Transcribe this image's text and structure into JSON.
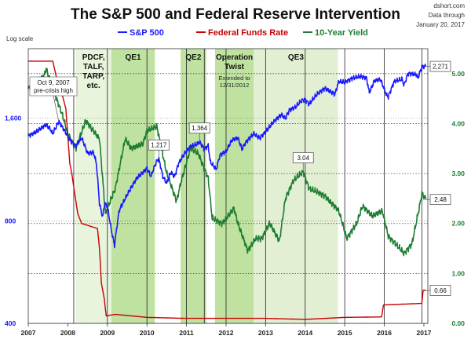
{
  "header": {
    "title": "The S&P 500 and Federal Reserve Intervention",
    "source": "dshort.com",
    "data_through_line1": "Data through",
    "data_through_line2": "January 20, 2017",
    "log_scale_label": "Log scale"
  },
  "chart_data": {
    "type": "line",
    "title": "The S&P 500 and Federal Reserve Intervention",
    "x_range": [
      2007,
      2017.1
    ],
    "x_ticks": [
      "2007",
      "2008",
      "2009",
      "2010",
      "2011",
      "2012",
      "2013",
      "2014",
      "2015",
      "2016",
      "2017"
    ],
    "left_axis": {
      "scale": "log",
      "range": [
        400,
        2560
      ],
      "ticks": [
        "400",
        "800",
        "1,600"
      ]
    },
    "right_axis": {
      "scale": "linear",
      "range": [
        0,
        5.5
      ],
      "ticks": [
        "0.00",
        "1.00",
        "2.00",
        "3.00",
        "4.00",
        "5.00"
      ]
    },
    "grid": true,
    "legend_position": "top",
    "series": [
      {
        "name": "S&P 500",
        "axis": "left",
        "color": "#1a1aff",
        "points": [
          [
            2007.0,
            1420
          ],
          [
            2007.2,
            1460
          ],
          [
            2007.45,
            1530
          ],
          [
            2007.55,
            1490
          ],
          [
            2007.62,
            1440
          ],
          [
            2007.77,
            1565
          ],
          [
            2007.92,
            1470
          ],
          [
            2008.05,
            1380
          ],
          [
            2008.2,
            1330
          ],
          [
            2008.35,
            1400
          ],
          [
            2008.5,
            1260
          ],
          [
            2008.65,
            1270
          ],
          [
            2008.72,
            1180
          ],
          [
            2008.8,
            900
          ],
          [
            2008.88,
            820
          ],
          [
            2008.93,
            900
          ],
          [
            2009.0,
            880
          ],
          [
            2009.1,
            750
          ],
          [
            2009.18,
            676
          ],
          [
            2009.3,
            860
          ],
          [
            2009.45,
            930
          ],
          [
            2009.6,
            1000
          ],
          [
            2009.75,
            1070
          ],
          [
            2009.9,
            1110
          ],
          [
            2010.0,
            1140
          ],
          [
            2010.1,
            1080
          ],
          [
            2010.25,
            1200
          ],
          [
            2010.3,
            1217
          ],
          [
            2010.4,
            1080
          ],
          [
            2010.5,
            1030
          ],
          [
            2010.6,
            1110
          ],
          [
            2010.7,
            1080
          ],
          [
            2010.8,
            1180
          ],
          [
            2010.95,
            1260
          ],
          [
            2011.1,
            1320
          ],
          [
            2011.25,
            1340
          ],
          [
            2011.33,
            1364
          ],
          [
            2011.45,
            1300
          ],
          [
            2011.55,
            1330
          ],
          [
            2011.6,
            1190
          ],
          [
            2011.75,
            1130
          ],
          [
            2011.85,
            1250
          ],
          [
            2012.0,
            1280
          ],
          [
            2012.15,
            1380
          ],
          [
            2012.3,
            1400
          ],
          [
            2012.4,
            1300
          ],
          [
            2012.5,
            1360
          ],
          [
            2012.7,
            1440
          ],
          [
            2012.85,
            1400
          ],
          [
            2013.0,
            1460
          ],
          [
            2013.2,
            1560
          ],
          [
            2013.4,
            1640
          ],
          [
            2013.5,
            1600
          ],
          [
            2013.6,
            1690
          ],
          [
            2013.75,
            1720
          ],
          [
            2013.9,
            1800
          ],
          [
            2014.0,
            1820
          ],
          [
            2014.1,
            1760
          ],
          [
            2014.3,
            1880
          ],
          [
            2014.5,
            1960
          ],
          [
            2014.6,
            1930
          ],
          [
            2014.75,
            1880
          ],
          [
            2014.85,
            2050
          ],
          [
            2015.0,
            2040
          ],
          [
            2015.2,
            2100
          ],
          [
            2015.4,
            2120
          ],
          [
            2015.55,
            2100
          ],
          [
            2015.62,
            1900
          ],
          [
            2015.75,
            2060
          ],
          [
            2015.9,
            2080
          ],
          [
            2016.05,
            1880
          ],
          [
            2016.1,
            1850
          ],
          [
            2016.25,
            2050
          ],
          [
            2016.45,
            2080
          ],
          [
            2016.5,
            2000
          ],
          [
            2016.6,
            2170
          ],
          [
            2016.8,
            2150
          ],
          [
            2016.85,
            2100
          ],
          [
            2016.95,
            2260
          ],
          [
            2017.05,
            2271
          ]
        ]
      },
      {
        "name": "Federal Funds Rate",
        "axis": "right",
        "color": "#c80000",
        "points": [
          [
            2007.0,
            5.25
          ],
          [
            2007.62,
            5.25
          ],
          [
            2007.72,
            4.9
          ],
          [
            2007.85,
            4.6
          ],
          [
            2007.95,
            4.3
          ],
          [
            2008.05,
            3.2
          ],
          [
            2008.1,
            3.0
          ],
          [
            2008.25,
            2.2
          ],
          [
            2008.35,
            2.0
          ],
          [
            2008.75,
            1.9
          ],
          [
            2008.8,
            1.5
          ],
          [
            2008.85,
            0.8
          ],
          [
            2008.92,
            0.5
          ],
          [
            2008.97,
            0.15
          ],
          [
            2009.2,
            0.18
          ],
          [
            2010.0,
            0.12
          ],
          [
            2011.0,
            0.1
          ],
          [
            2012.0,
            0.1
          ],
          [
            2013.0,
            0.1
          ],
          [
            2014.0,
            0.08
          ],
          [
            2015.0,
            0.12
          ],
          [
            2015.93,
            0.13
          ],
          [
            2015.98,
            0.37
          ],
          [
            2016.95,
            0.4
          ],
          [
            2016.98,
            0.66
          ],
          [
            2017.05,
            0.66
          ]
        ]
      },
      {
        "name": "10-Year Yield",
        "axis": "right",
        "color": "#1e7d32",
        "points": [
          [
            2007.0,
            4.7
          ],
          [
            2007.4,
            4.95
          ],
          [
            2007.45,
            5.1
          ],
          [
            2007.6,
            4.75
          ],
          [
            2007.85,
            4.2
          ],
          [
            2008.0,
            3.8
          ],
          [
            2008.2,
            3.5
          ],
          [
            2008.45,
            4.05
          ],
          [
            2008.6,
            3.9
          ],
          [
            2008.8,
            3.7
          ],
          [
            2008.95,
            2.2
          ],
          [
            2009.0,
            2.3
          ],
          [
            2009.2,
            2.7
          ],
          [
            2009.45,
            3.7
          ],
          [
            2009.6,
            3.5
          ],
          [
            2009.9,
            3.6
          ],
          [
            2010.0,
            3.85
          ],
          [
            2010.25,
            3.95
          ],
          [
            2010.5,
            3.0
          ],
          [
            2010.75,
            2.45
          ],
          [
            2010.85,
            2.8
          ],
          [
            2011.1,
            3.5
          ],
          [
            2011.3,
            3.4
          ],
          [
            2011.55,
            2.9
          ],
          [
            2011.65,
            2.1
          ],
          [
            2011.9,
            2.0
          ],
          [
            2012.2,
            2.3
          ],
          [
            2012.3,
            2.0
          ],
          [
            2012.55,
            1.45
          ],
          [
            2012.75,
            1.7
          ],
          [
            2012.9,
            1.7
          ],
          [
            2013.1,
            2.0
          ],
          [
            2013.35,
            1.65
          ],
          [
            2013.5,
            2.5
          ],
          [
            2013.7,
            2.85
          ],
          [
            2013.95,
            3.04
          ],
          [
            2014.1,
            2.7
          ],
          [
            2014.5,
            2.55
          ],
          [
            2014.85,
            2.25
          ],
          [
            2015.05,
            1.7
          ],
          [
            2015.3,
            2.0
          ],
          [
            2015.45,
            2.35
          ],
          [
            2015.7,
            2.15
          ],
          [
            2015.95,
            2.25
          ],
          [
            2016.1,
            1.75
          ],
          [
            2016.5,
            1.4
          ],
          [
            2016.7,
            1.6
          ],
          [
            2016.88,
            2.3
          ],
          [
            2016.95,
            2.6
          ],
          [
            2017.05,
            2.48
          ]
        ]
      }
    ],
    "bands": [
      {
        "name": "PDCF, TALF, TARP, etc.",
        "start": 2008.2,
        "end": 2009.1,
        "style": "light"
      },
      {
        "name": "QE1",
        "start": 2009.1,
        "end": 2010.2,
        "style": "mid"
      },
      {
        "name": "QE2",
        "start": 2010.85,
        "end": 2011.5,
        "style": "mid"
      },
      {
        "name": "Operation Twist",
        "note": "Extended to 12/31/2012",
        "start": 2011.72,
        "end": 2012.7,
        "style": "mid"
      },
      {
        "name": "QE3",
        "start": 2012.7,
        "end": 2014.83,
        "style": "faint"
      }
    ],
    "vlines": [
      2008.15,
      2009.0,
      2010.0,
      2011.0,
      2011.45,
      2012.0,
      2013.0,
      2014.0,
      2015.0,
      2016.0,
      2016.95
    ],
    "annotations": [
      {
        "text": [
          "Oct 9, 2007",
          "pre-crisis high"
        ],
        "series": "S&P 500",
        "x": 2007.77,
        "y": 1565,
        "box": false
      },
      {
        "text": [
          "1,217"
        ],
        "series": "S&P 500",
        "x": 2010.3,
        "y": 1217,
        "box": true
      },
      {
        "text": [
          "1,364"
        ],
        "series": "S&P 500",
        "x": 2011.33,
        "y": 1364,
        "box": true
      },
      {
        "text": [
          "2,271"
        ],
        "series": "S&P 500",
        "x": 2017.05,
        "y": 2271,
        "box": true
      },
      {
        "text": [
          "3.04"
        ],
        "series": "10-Year Yield",
        "x": 2013.95,
        "y": 3.04,
        "box": true
      },
      {
        "text": [
          "2.48"
        ],
        "series": "10-Year Yield",
        "x": 2017.05,
        "y": 2.48,
        "box": true
      },
      {
        "text": [
          "0.66"
        ],
        "series": "Federal Funds Rate",
        "x": 2017.05,
        "y": 0.66,
        "box": true
      }
    ]
  }
}
